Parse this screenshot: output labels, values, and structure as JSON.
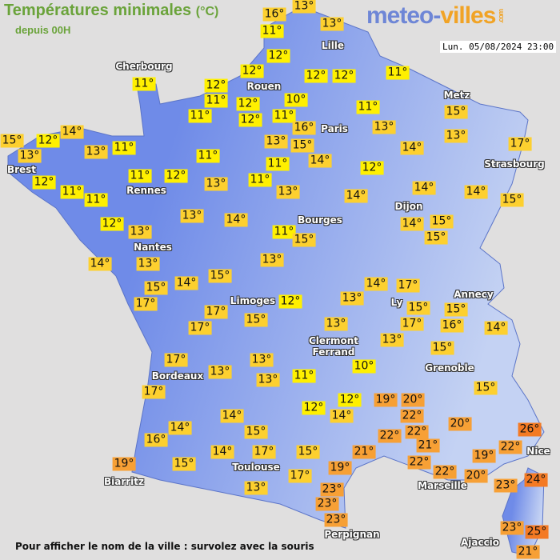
{
  "header": {
    "title": "Températures minimales",
    "unit": "(°C)",
    "subtitle": "depuis 00H",
    "logo": {
      "part1": "meteo-",
      "part2": "villes",
      "part3": ".com"
    },
    "datetime": "Lun. 05/08/2024 23:00"
  },
  "footer": "Pour afficher le nom de la ville : survolez avec la souris",
  "colors": {
    "background": "#e0dfdf",
    "land_west": "#6f8be8",
    "land_east": "#c4d2f3",
    "cold": "#fff000",
    "mild": "#fdd02f",
    "warm": "#f7a035",
    "hot": "#f47a24",
    "title": "#6aa33a"
  },
  "cities": [
    "Cherbourg",
    "Rouen",
    "Lille",
    "Paris",
    "Metz",
    "Strasbourg",
    "Brest",
    "Rennes",
    "Nantes",
    "Bourges",
    "Dijon",
    "Limoges",
    "Ly",
    "Annecy",
    "Clermont\nFerrand",
    "Grenoble",
    "Bordeaux",
    "Biarritz",
    "Toulouse",
    "Marseille",
    "Nice",
    "Perpignan",
    "Ajaccio"
  ],
  "temperatures": [
    "16°",
    "13°",
    "11°",
    "13°",
    "12°",
    "12°",
    "12°",
    "12°",
    "11°",
    "12°",
    "11°",
    "12°",
    "10°",
    "11°",
    "11°",
    "12°",
    "11°",
    "16°",
    "11°",
    "13°",
    "15°",
    "13°",
    "14°",
    "15°",
    "12°",
    "13°",
    "13°",
    "11°",
    "13°",
    "15°",
    "14°",
    "14°",
    "17°",
    "11°",
    "11°",
    "12°",
    "12°",
    "11°",
    "12°",
    "13°",
    "11°",
    "11°",
    "11°",
    "13°",
    "14°",
    "14°",
    "14°",
    "15°",
    "12°",
    "13°",
    "13°",
    "14°",
    "11°",
    "15°",
    "14°",
    "15°",
    "15°",
    "14°",
    "13°",
    "13°",
    "15°",
    "14°",
    "15°",
    "14°",
    "17°",
    "17°",
    "17°",
    "17°",
    "15°",
    "12°",
    "13°",
    "15°",
    "15°",
    "16°",
    "17°",
    "14°",
    "13°",
    "13°",
    "15°",
    "17°",
    "13°",
    "13°",
    "13°",
    "11°",
    "10°",
    "17°",
    "12°",
    "12°",
    "14°",
    "19°",
    "20°",
    "22°",
    "20°",
    "15°",
    "26°",
    "14°",
    "14°",
    "16°",
    "15°",
    "22°",
    "22°",
    "22°",
    "21°",
    "21°",
    "14°",
    "17°",
    "15°",
    "15°",
    "19°",
    "22°",
    "22°",
    "19°",
    "20°",
    "19°",
    "17°",
    "13°",
    "23°",
    "23°",
    "23°",
    "23°",
    "24°",
    "23°",
    "25°",
    "21°"
  ]
}
